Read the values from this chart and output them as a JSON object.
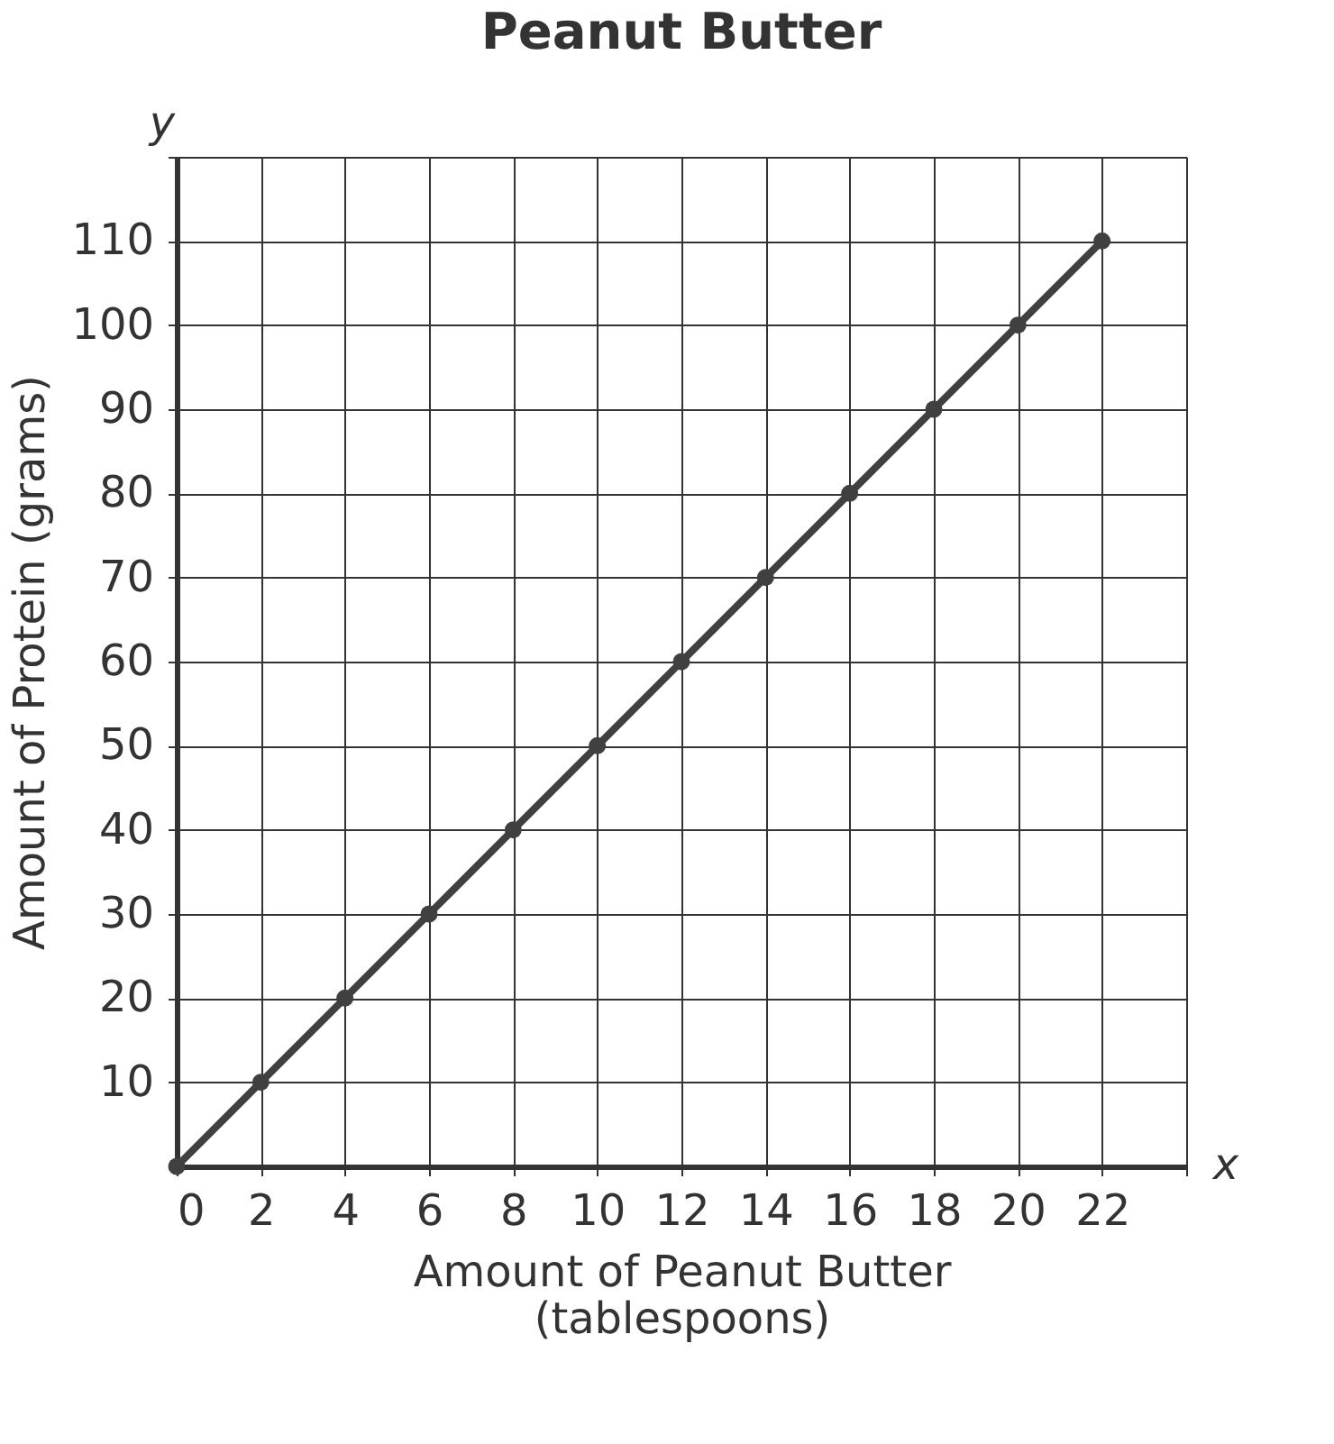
{
  "chart_data": {
    "type": "line",
    "title": "Peanut Butter",
    "xlabel": "Amount of Peanut Butter\n(tablespoons)",
    "ylabel": "Amount of Protein (grams)",
    "x": [
      0,
      2,
      4,
      6,
      8,
      10,
      12,
      14,
      16,
      18,
      20,
      22
    ],
    "series": [
      {
        "color": "#404040",
        "values": [
          0,
          10,
          20,
          30,
          40,
          50,
          60,
          70,
          80,
          90,
          100,
          110
        ]
      }
    ],
    "xlim": [
      0,
      24
    ],
    "ylim": [
      0,
      120
    ],
    "xticks": [
      0,
      2,
      4,
      6,
      8,
      10,
      12,
      14,
      16,
      18,
      20,
      22,
      {
        "value": 24,
        "label": null
      }
    ],
    "yticks": [
      10,
      20,
      30,
      40,
      50,
      60,
      70,
      80,
      90,
      100,
      110,
      {
        "value": 120,
        "label": null
      }
    ],
    "grid": true,
    "marker": "circle",
    "line_style": "solid",
    "annotations": [
      "x",
      "y"
    ]
  }
}
